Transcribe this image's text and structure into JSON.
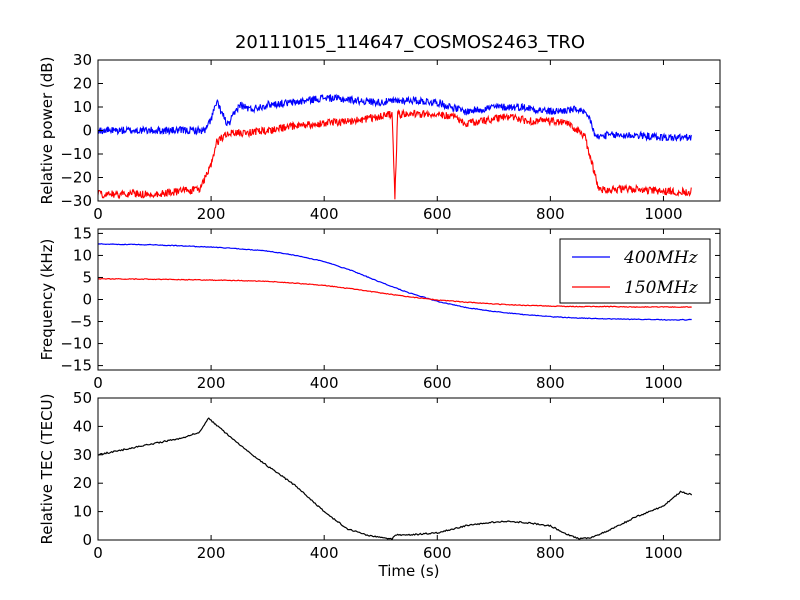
{
  "chart_data": [
    {
      "type": "line",
      "title": "20111015_114647_COSMOS2463_TRO",
      "xlabel": "",
      "ylabel": "Relative power (dB)",
      "xlim": [
        0,
        1100
      ],
      "ylim": [
        -30,
        30
      ],
      "xticks": [
        "0",
        "200",
        "400",
        "600",
        "800",
        "1000"
      ],
      "yticks": [
        "−30",
        "−20",
        "−10",
        "0",
        "10",
        "20",
        "30"
      ],
      "grid": false,
      "series": [
        {
          "color": "#0000ff",
          "x": [
            0,
            100,
            190,
            200,
            210,
            230,
            250,
            270,
            300,
            350,
            400,
            450,
            500,
            550,
            600,
            650,
            700,
            750,
            800,
            850,
            870,
            880,
            900,
            950,
            1000,
            1050
          ],
          "y": [
            0,
            0,
            0,
            5,
            12,
            2,
            11,
            9,
            11,
            12,
            14,
            13,
            12,
            13,
            12,
            8,
            10,
            10,
            8,
            9,
            5,
            -3,
            -2,
            -2,
            -3,
            -3
          ]
        },
        {
          "color": "#ff0000",
          "x": [
            0,
            100,
            180,
            190,
            200,
            210,
            230,
            260,
            300,
            350,
            400,
            450,
            500,
            520,
            525,
            530,
            550,
            600,
            630,
            650,
            700,
            730,
            760,
            800,
            830,
            860,
            875,
            885,
            900,
            950,
            1000,
            1050
          ],
          "y": [
            -27,
            -27,
            -25,
            -20,
            -15,
            -5,
            -1,
            -1,
            0,
            2,
            3,
            4,
            6,
            7,
            -28,
            7,
            7,
            7,
            6,
            3,
            5,
            6,
            4,
            4,
            3,
            -2,
            -15,
            -25,
            -25,
            -25,
            -26,
            -26
          ]
        }
      ]
    },
    {
      "type": "line",
      "title": "",
      "xlabel": "",
      "ylabel": "Frequency (kHz)",
      "xlim": [
        0,
        1100
      ],
      "ylim": [
        -16,
        16
      ],
      "xticks": [
        "0",
        "200",
        "400",
        "600",
        "800",
        "1000"
      ],
      "yticks": [
        "−15",
        "−10",
        "−5",
        "0",
        "5",
        "10",
        "15"
      ],
      "grid": false,
      "legend": "top-right",
      "series": [
        {
          "name": "400MHz",
          "color": "#0000ff",
          "x": [
            0,
            100,
            200,
            250,
            300,
            350,
            400,
            450,
            500,
            550,
            600,
            650,
            700,
            750,
            800,
            850,
            900,
            950,
            1000,
            1050
          ],
          "y": [
            12.6,
            12.4,
            11.9,
            11.5,
            11.0,
            10.0,
            8.6,
            6.5,
            3.9,
            1.5,
            -0.4,
            -1.8,
            -2.7,
            -3.4,
            -3.9,
            -4.2,
            -4.4,
            -4.5,
            -4.6,
            -4.6
          ]
        },
        {
          "name": "150MHz",
          "color": "#ff0000",
          "x": [
            0,
            100,
            200,
            250,
            300,
            350,
            400,
            450,
            500,
            550,
            600,
            650,
            700,
            750,
            800,
            850,
            900,
            950,
            1000,
            1050
          ],
          "y": [
            4.7,
            4.6,
            4.4,
            4.3,
            4.1,
            3.7,
            3.2,
            2.4,
            1.5,
            0.6,
            -0.1,
            -0.6,
            -1.0,
            -1.3,
            -1.5,
            -1.6,
            -1.6,
            -1.7,
            -1.7,
            -1.7
          ]
        }
      ]
    },
    {
      "type": "line",
      "title": "",
      "xlabel": "Time (s)",
      "ylabel": "Relative TEC (TECU)",
      "xlim": [
        0,
        1100
      ],
      "ylim": [
        0,
        50
      ],
      "xticks": [
        "0",
        "200",
        "400",
        "600",
        "800",
        "1000"
      ],
      "yticks": [
        "0",
        "10",
        "20",
        "30",
        "40",
        "50"
      ],
      "grid": false,
      "series": [
        {
          "color": "#000000",
          "x": [
            0,
            25,
            50,
            100,
            150,
            180,
            195,
            200,
            230,
            260,
            300,
            350,
            400,
            440,
            480,
            520,
            525,
            550,
            600,
            650,
            700,
            720,
            750,
            800,
            830,
            850,
            870,
            900,
            950,
            1000,
            1030,
            1050
          ],
          "y": [
            30,
            31,
            32,
            34,
            36,
            38,
            43,
            42,
            37,
            32,
            26,
            19,
            10,
            4,
            1.5,
            0.3,
            1.8,
            1.8,
            2.5,
            5,
            6.3,
            6.5,
            6.3,
            5,
            2,
            0.5,
            0.8,
            3,
            8,
            12,
            17,
            16
          ]
        }
      ]
    }
  ]
}
